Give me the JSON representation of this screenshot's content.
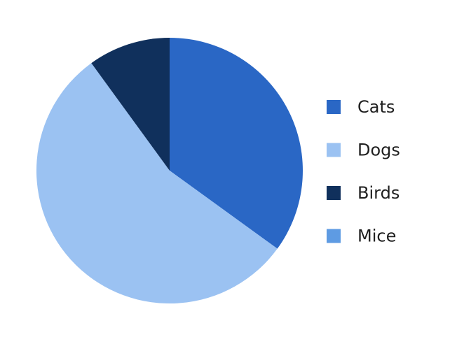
{
  "chart_data": {
    "type": "pie",
    "title": "",
    "slices": [
      {
        "label": "Cats",
        "value": 35,
        "color": "#2a67c5"
      },
      {
        "label": "Dogs",
        "value": 55,
        "color": "#9bc2f2"
      },
      {
        "label": "Birds",
        "value": 10,
        "color": "#10305c"
      },
      {
        "label": "Mice",
        "value": 0,
        "color": "#5e9be3"
      }
    ],
    "start_angle_deg": 0,
    "direction": "clockwise",
    "legend": {
      "position": "right"
    }
  }
}
